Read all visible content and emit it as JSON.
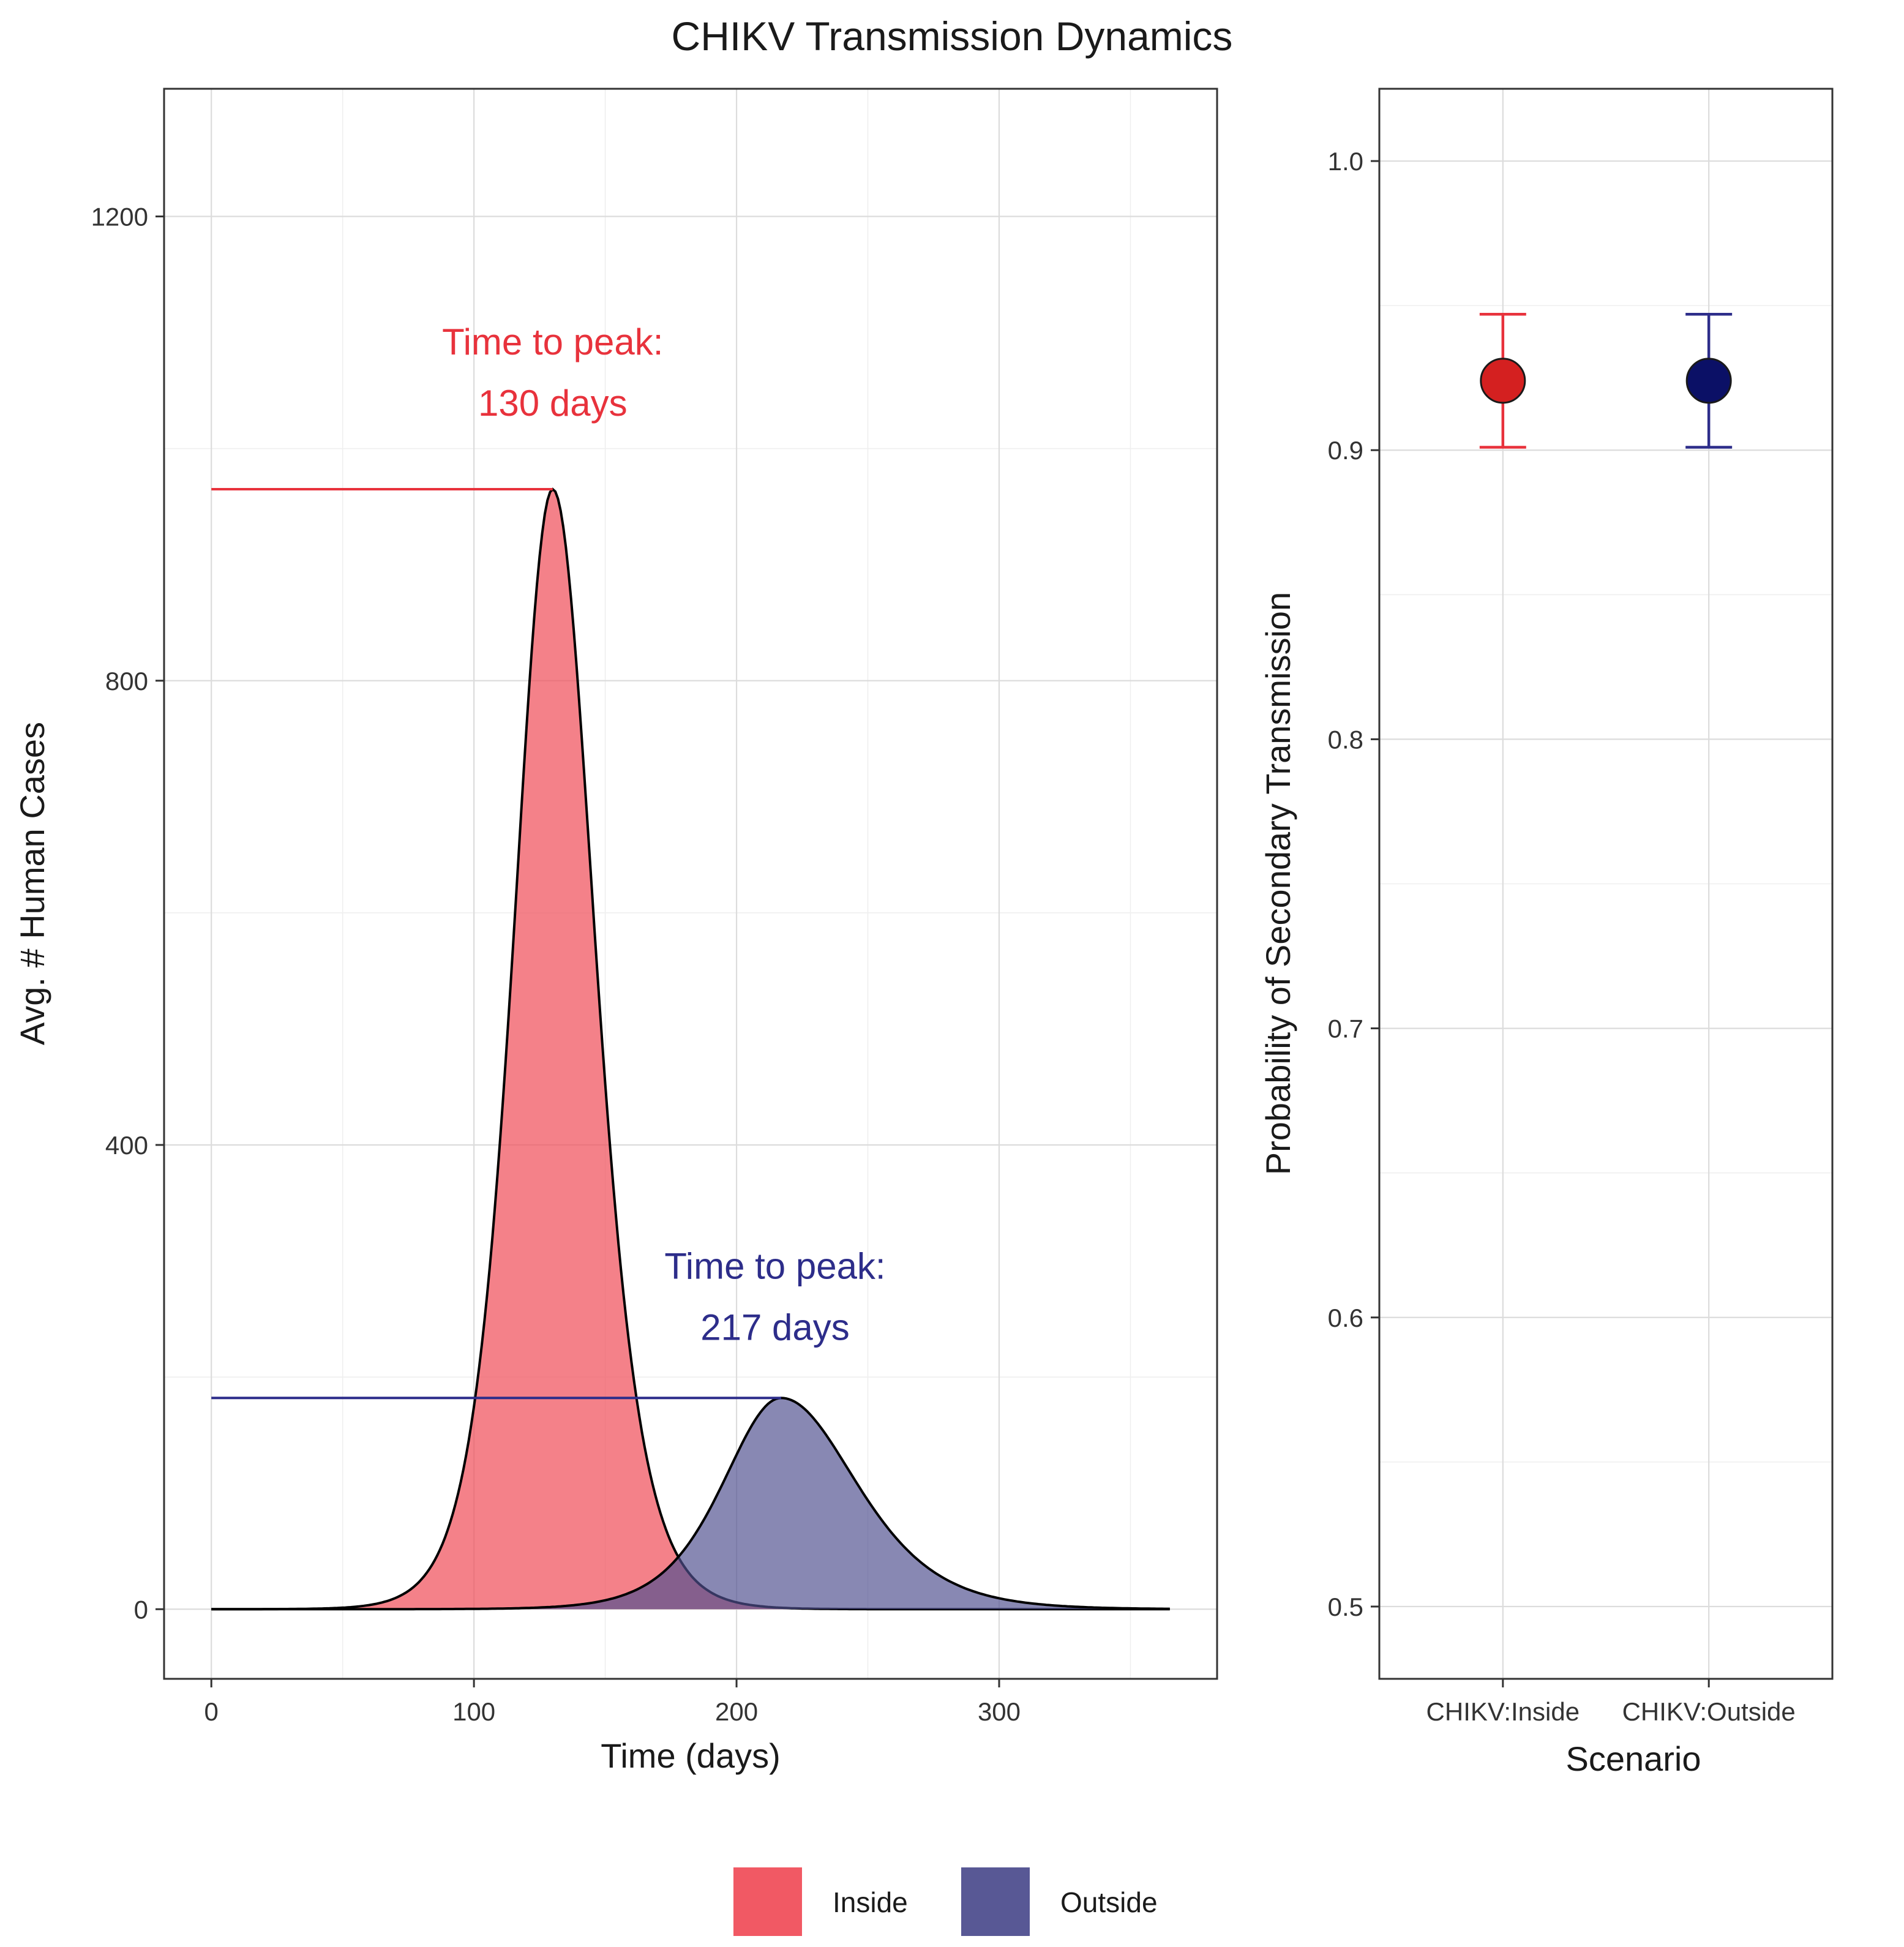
{
  "figure_title": "CHIKV Transmission Dynamics",
  "colors": {
    "inside": "#f0505c",
    "outside": "#4f4f8f",
    "inside_label": "#e8323c",
    "outside_label": "#2d2d8a",
    "inside_point": "#d42020",
    "outside_point": "#0b1066"
  },
  "chart_data": [
    {
      "type": "area",
      "title": "",
      "xlabel": "Time (days)",
      "ylabel": "Avg. # Human Cases",
      "xlim": [
        -18,
        383
      ],
      "ylim": [
        -60,
        1310
      ],
      "x_ticks": [
        0,
        100,
        200,
        300
      ],
      "x_tick_labels": [
        "0",
        "100",
        "200",
        "300"
      ],
      "y_ticks": [
        0,
        400,
        800,
        1200
      ],
      "y_tick_labels": [
        "0",
        "400",
        "800",
        "1200"
      ],
      "grid": true,
      "series": [
        {
          "name": "Inside",
          "shape": "peaked density curve",
          "peak_day": 130,
          "peak_cases": 965,
          "rise_width_days": 25,
          "decay_width_days": 27,
          "x_end": 365,
          "annotation": [
            "Time to peak:",
            "130 days"
          ]
        },
        {
          "name": "Outside",
          "shape": "peaked density curve",
          "peak_day": 217,
          "peak_cases": 182,
          "rise_width_days": 37,
          "decay_width_days": 48,
          "x_end": 365,
          "annotation": [
            "Time to peak:",
            "217 days"
          ]
        }
      ],
      "legend": {
        "position": "bottom",
        "entries": [
          "Inside",
          "Outside"
        ]
      }
    },
    {
      "type": "scatter",
      "title": "",
      "xlabel": "Scenario",
      "ylabel": "Probability of Secondary Transmission",
      "categories": [
        "CHIKV:Inside",
        "CHIKV:Outside"
      ],
      "values": [
        0.924,
        0.924
      ],
      "error_low": [
        0.901,
        0.901
      ],
      "error_high": [
        0.947,
        0.947
      ],
      "ylim": [
        0.475,
        1.025
      ],
      "y_ticks": [
        0.5,
        0.6,
        0.7,
        0.8,
        0.9,
        1.0
      ],
      "y_tick_labels": [
        "0.5",
        "0.6",
        "0.7",
        "0.8",
        "0.9",
        "1.0"
      ],
      "grid": true
    }
  ]
}
